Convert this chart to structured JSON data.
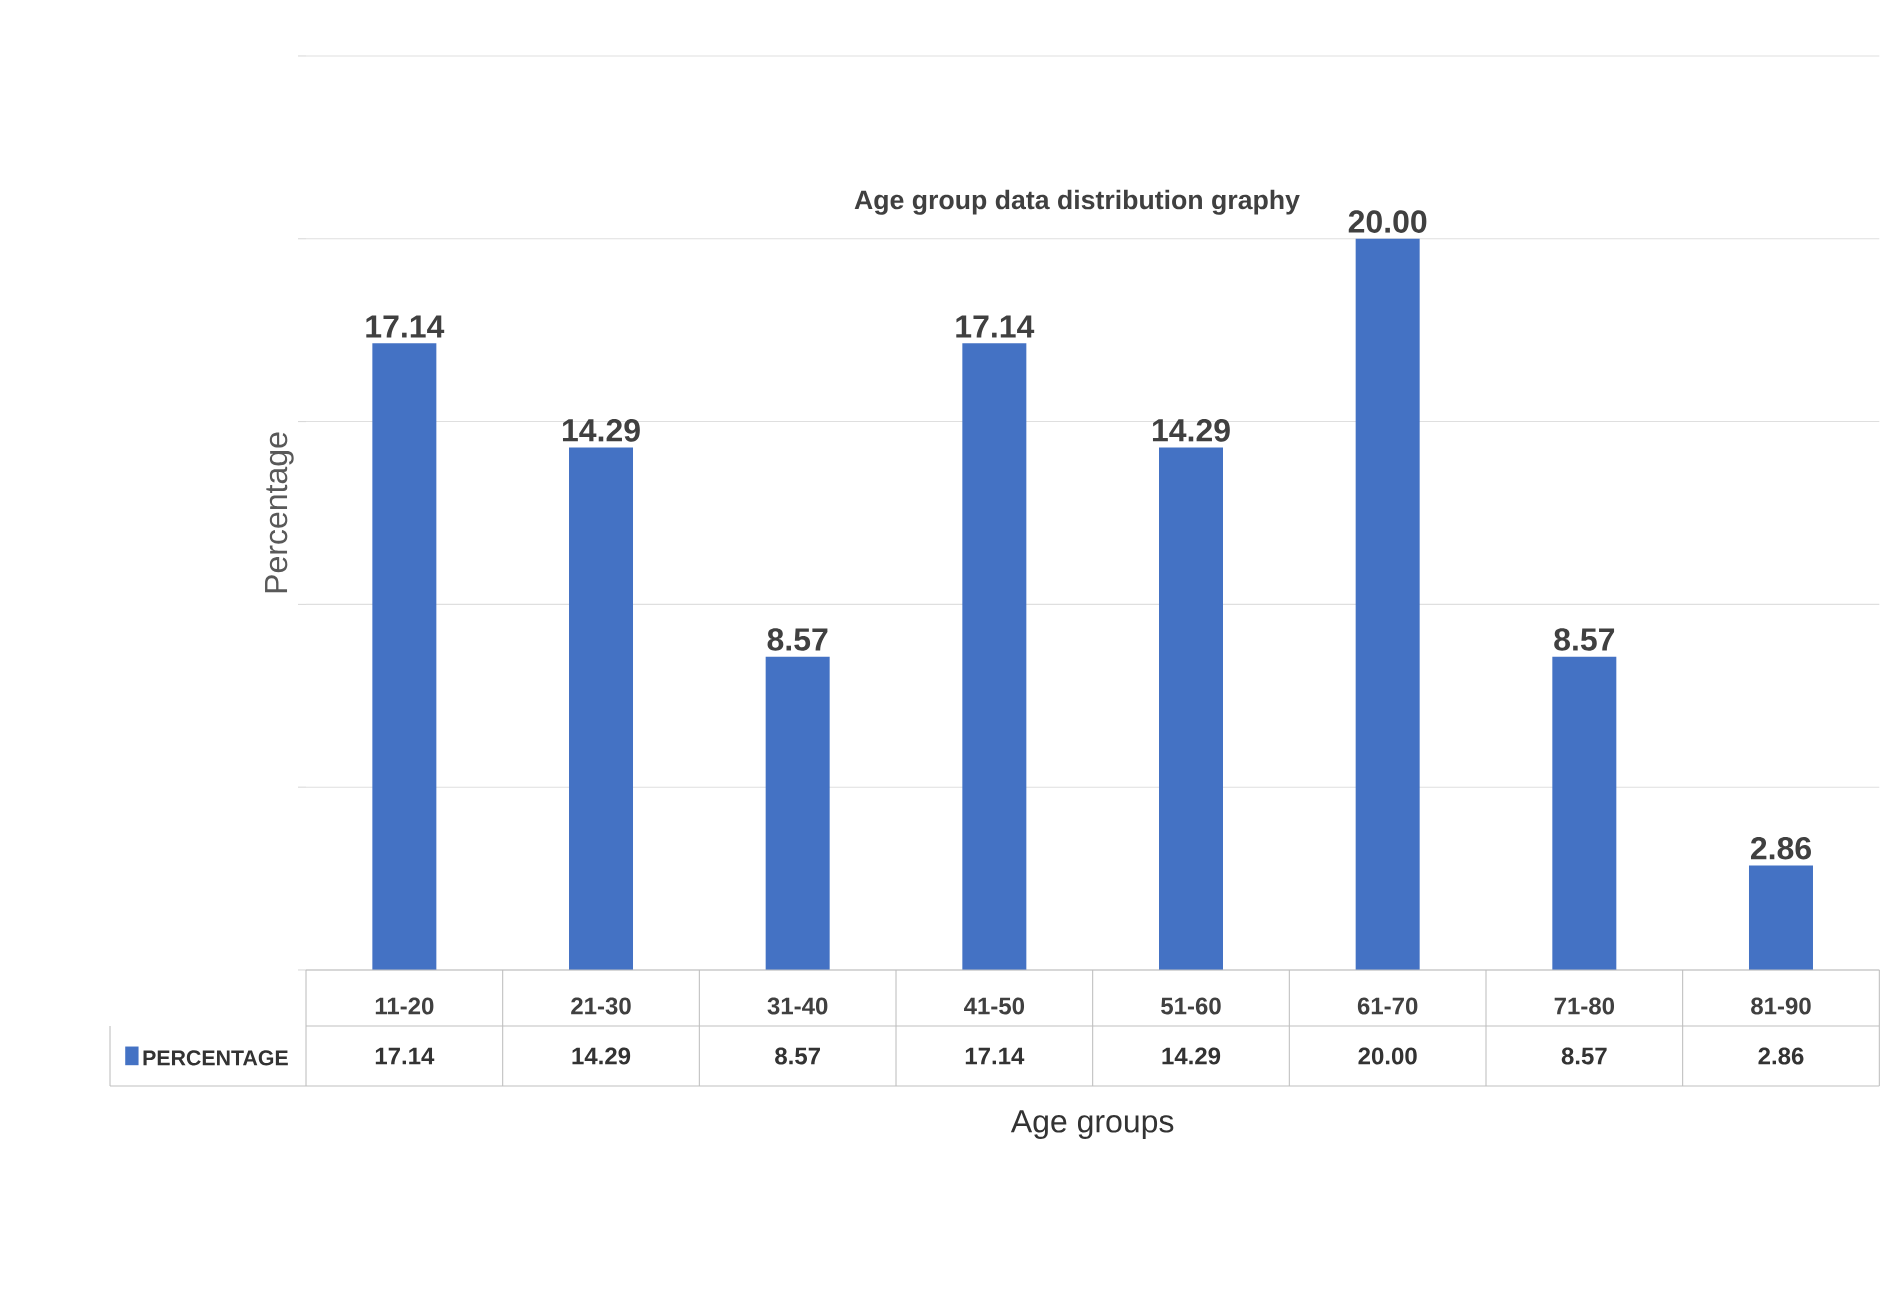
{
  "chart_data": {
    "type": "bar",
    "title": "Age group data distribution graphy",
    "xlabel": "Age groups",
    "ylabel": "Percentage",
    "categories": [
      "11-20",
      "21-30",
      "31-40",
      "41-50",
      "51-60",
      "61-70",
      "71-80",
      "81-90"
    ],
    "series": [
      {
        "name": "PERCENTAGE",
        "color": "#4472c4",
        "values": [
          17.14,
          14.29,
          8.57,
          17.14,
          14.29,
          20.0,
          8.57,
          2.86
        ],
        "value_labels": [
          "17.14",
          "14.29",
          "8.57",
          "17.14",
          "14.29",
          "20.00",
          "8.57",
          "2.86"
        ]
      }
    ],
    "ylim": [
      0,
      25
    ],
    "yticks": [
      {
        "value": 0,
        "label": null
      },
      {
        "value": 5,
        "label": null
      },
      {
        "value": 10,
        "label": null
      },
      {
        "value": 15,
        "label": null
      },
      {
        "value": 20,
        "label": null
      },
      {
        "value": 25,
        "label": null
      }
    ],
    "grid": "y",
    "legend": "bottom"
  }
}
